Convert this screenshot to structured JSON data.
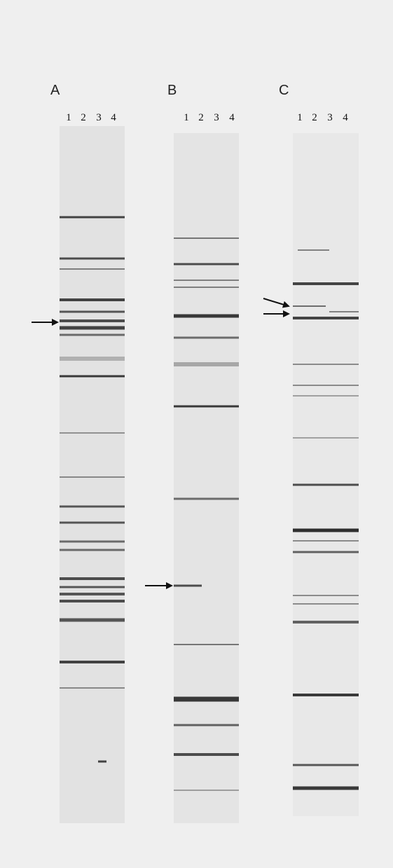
{
  "panels": [
    {
      "label": "A",
      "lanes": [
        "1",
        "2",
        "3",
        "4"
      ]
    },
    {
      "label": "B",
      "lanes": [
        "1",
        "2",
        "3",
        "4"
      ]
    },
    {
      "label": "C",
      "lanes": [
        "1",
        "2",
        "3",
        "4"
      ]
    }
  ]
}
